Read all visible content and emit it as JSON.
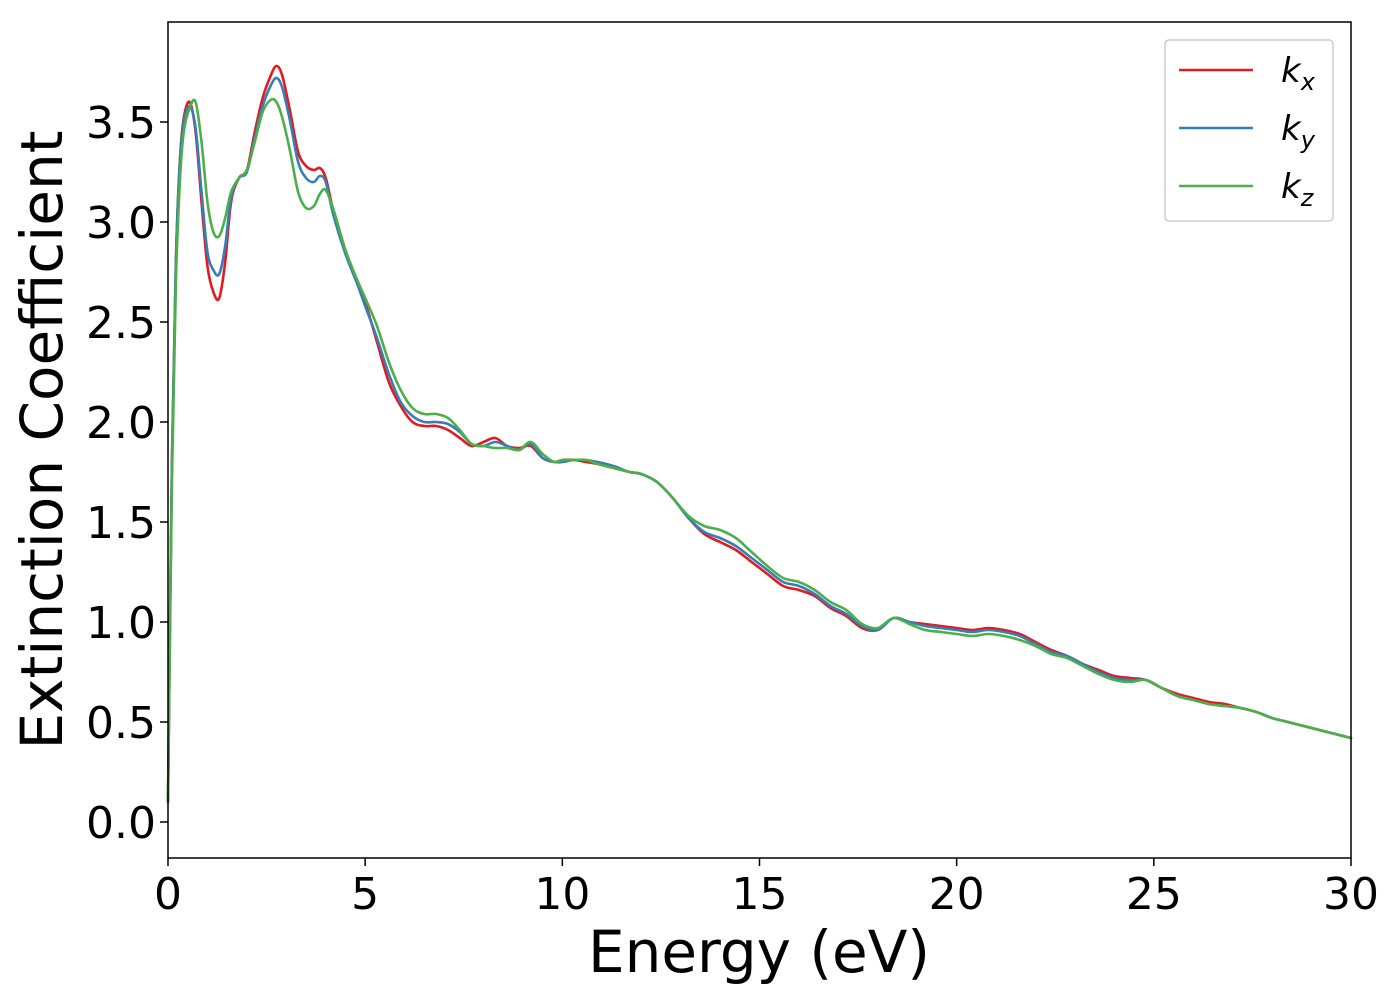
{
  "chart_data": {
    "type": "line",
    "xlabel": "Energy (eV)",
    "ylabel": "Extinction Coefficient",
    "xlim": [
      0,
      30
    ],
    "ylim": [
      -0.18,
      4.0
    ],
    "xticks": [
      "0",
      "5",
      "10",
      "15",
      "20",
      "25",
      "30"
    ],
    "yticks": [
      "0.0",
      "0.5",
      "1.0",
      "1.5",
      "2.0",
      "2.5",
      "3.0",
      "3.5"
    ],
    "grid": false,
    "legend_position": "top-right",
    "series": [
      {
        "name": "k",
        "subscript": "x",
        "color": "#e41a1c",
        "x": [
          0,
          0.1,
          0.2,
          0.3,
          0.4,
          0.55,
          0.7,
          0.85,
          1.0,
          1.15,
          1.3,
          1.45,
          1.6,
          1.8,
          2.0,
          2.2,
          2.4,
          2.6,
          2.75,
          2.9,
          3.1,
          3.3,
          3.5,
          3.7,
          3.85,
          4.0,
          4.2,
          4.5,
          4.8,
          5.0,
          5.3,
          5.6,
          5.9,
          6.2,
          6.5,
          6.8,
          7.1,
          7.4,
          7.7,
          8.0,
          8.3,
          8.6,
          8.9,
          9.2,
          9.5,
          9.8,
          10.0,
          10.3,
          10.6,
          10.9,
          11.3,
          11.7,
          12.0,
          12.4,
          12.8,
          13.2,
          13.6,
          14.0,
          14.4,
          14.8,
          15.2,
          15.6,
          16.0,
          16.4,
          16.8,
          17.2,
          17.6,
          18.0,
          18.4,
          18.8,
          19.2,
          19.6,
          20.0,
          20.4,
          20.8,
          21.2,
          21.6,
          22.0,
          22.4,
          22.8,
          23.2,
          23.6,
          24.0,
          24.4,
          24.8,
          25.2,
          25.6,
          26.0,
          26.4,
          26.8,
          27.2,
          27.6,
          28.0,
          28.4,
          28.8,
          29.2,
          29.6,
          30.0
        ],
        "y": [
          0.1,
          1.8,
          2.8,
          3.3,
          3.52,
          3.6,
          3.45,
          3.1,
          2.78,
          2.65,
          2.62,
          2.8,
          3.1,
          3.22,
          3.26,
          3.45,
          3.62,
          3.73,
          3.78,
          3.73,
          3.55,
          3.35,
          3.28,
          3.26,
          3.27,
          3.22,
          3.05,
          2.85,
          2.7,
          2.6,
          2.4,
          2.2,
          2.08,
          2.0,
          1.98,
          1.98,
          1.96,
          1.92,
          1.88,
          1.9,
          1.92,
          1.88,
          1.87,
          1.88,
          1.82,
          1.8,
          1.81,
          1.81,
          1.8,
          1.79,
          1.77,
          1.75,
          1.74,
          1.7,
          1.62,
          1.52,
          1.44,
          1.4,
          1.36,
          1.3,
          1.24,
          1.18,
          1.16,
          1.13,
          1.07,
          1.03,
          0.97,
          0.96,
          1.02,
          1.0,
          0.99,
          0.98,
          0.97,
          0.96,
          0.97,
          0.96,
          0.94,
          0.9,
          0.86,
          0.83,
          0.79,
          0.76,
          0.73,
          0.72,
          0.71,
          0.67,
          0.64,
          0.62,
          0.6,
          0.59,
          0.57,
          0.55,
          0.52,
          0.5,
          0.48,
          0.46,
          0.44,
          0.42
        ]
      },
      {
        "name": "k",
        "subscript": "y",
        "color": "#377eb8",
        "x": [
          0,
          0.1,
          0.2,
          0.3,
          0.4,
          0.55,
          0.7,
          0.85,
          1.0,
          1.15,
          1.3,
          1.45,
          1.6,
          1.8,
          2.0,
          2.2,
          2.4,
          2.6,
          2.75,
          2.9,
          3.1,
          3.3,
          3.5,
          3.7,
          3.85,
          4.0,
          4.2,
          4.5,
          4.8,
          5.0,
          5.3,
          5.6,
          5.9,
          6.2,
          6.5,
          6.8,
          7.1,
          7.4,
          7.7,
          8.0,
          8.3,
          8.6,
          8.9,
          9.2,
          9.5,
          9.8,
          10.0,
          10.3,
          10.6,
          10.9,
          11.3,
          11.7,
          12.0,
          12.4,
          12.8,
          13.2,
          13.6,
          14.0,
          14.4,
          14.8,
          15.2,
          15.6,
          16.0,
          16.4,
          16.8,
          17.2,
          17.6,
          18.0,
          18.4,
          18.8,
          19.2,
          19.6,
          20.0,
          20.4,
          20.8,
          21.2,
          21.6,
          22.0,
          22.4,
          22.8,
          23.2,
          23.6,
          24.0,
          24.4,
          24.8,
          25.2,
          25.6,
          26.0,
          26.4,
          26.8,
          27.2,
          27.6,
          28.0,
          28.4,
          28.8,
          29.2,
          29.6,
          30.0
        ],
        "y": [
          0.1,
          1.8,
          2.8,
          3.3,
          3.5,
          3.58,
          3.47,
          3.15,
          2.85,
          2.76,
          2.74,
          2.88,
          3.12,
          3.22,
          3.25,
          3.42,
          3.58,
          3.68,
          3.72,
          3.67,
          3.5,
          3.3,
          3.22,
          3.2,
          3.23,
          3.2,
          3.03,
          2.84,
          2.69,
          2.58,
          2.42,
          2.24,
          2.1,
          2.03,
          2.0,
          2.0,
          1.99,
          1.95,
          1.89,
          1.88,
          1.9,
          1.88,
          1.86,
          1.89,
          1.82,
          1.8,
          1.8,
          1.81,
          1.81,
          1.8,
          1.78,
          1.75,
          1.74,
          1.7,
          1.62,
          1.52,
          1.45,
          1.42,
          1.38,
          1.32,
          1.26,
          1.2,
          1.18,
          1.14,
          1.08,
          1.04,
          0.98,
          0.96,
          1.02,
          1.0,
          0.98,
          0.97,
          0.96,
          0.95,
          0.96,
          0.95,
          0.93,
          0.89,
          0.85,
          0.83,
          0.79,
          0.75,
          0.72,
          0.71,
          0.71,
          0.67,
          0.63,
          0.61,
          0.59,
          0.58,
          0.57,
          0.55,
          0.52,
          0.5,
          0.48,
          0.46,
          0.44,
          0.42
        ]
      },
      {
        "name": "k",
        "subscript": "z",
        "color": "#4daf4a",
        "x": [
          0,
          0.1,
          0.2,
          0.3,
          0.4,
          0.55,
          0.7,
          0.85,
          1.0,
          1.15,
          1.3,
          1.45,
          1.6,
          1.8,
          2.0,
          2.2,
          2.4,
          2.6,
          2.75,
          2.9,
          3.1,
          3.3,
          3.5,
          3.7,
          3.85,
          4.0,
          4.2,
          4.5,
          4.8,
          5.0,
          5.3,
          5.6,
          5.9,
          6.2,
          6.5,
          6.8,
          7.1,
          7.4,
          7.7,
          8.0,
          8.3,
          8.6,
          8.9,
          9.2,
          9.5,
          9.8,
          10.0,
          10.3,
          10.6,
          10.9,
          11.3,
          11.7,
          12.0,
          12.4,
          12.8,
          13.2,
          13.6,
          14.0,
          14.4,
          14.8,
          15.2,
          15.6,
          16.0,
          16.4,
          16.8,
          17.2,
          17.6,
          18.0,
          18.4,
          18.8,
          19.2,
          19.6,
          20.0,
          20.4,
          20.8,
          21.2,
          21.6,
          22.0,
          22.4,
          22.8,
          23.2,
          23.6,
          24.0,
          24.4,
          24.8,
          25.2,
          25.6,
          26.0,
          26.4,
          26.8,
          27.2,
          27.6,
          28.0,
          28.4,
          28.8,
          29.2,
          29.6,
          30.0
        ],
        "y": [
          0.1,
          1.7,
          2.7,
          3.2,
          3.45,
          3.57,
          3.6,
          3.4,
          3.1,
          2.95,
          2.93,
          3.02,
          3.15,
          3.22,
          3.26,
          3.4,
          3.55,
          3.61,
          3.6,
          3.52,
          3.35,
          3.15,
          3.07,
          3.08,
          3.14,
          3.16,
          3.06,
          2.86,
          2.71,
          2.62,
          2.48,
          2.3,
          2.16,
          2.07,
          2.04,
          2.04,
          2.02,
          1.96,
          1.89,
          1.88,
          1.87,
          1.87,
          1.86,
          1.9,
          1.84,
          1.8,
          1.81,
          1.81,
          1.81,
          1.79,
          1.77,
          1.75,
          1.74,
          1.7,
          1.62,
          1.53,
          1.48,
          1.46,
          1.42,
          1.35,
          1.28,
          1.22,
          1.2,
          1.16,
          1.1,
          1.06,
          0.99,
          0.97,
          1.02,
          0.99,
          0.96,
          0.95,
          0.94,
          0.93,
          0.94,
          0.93,
          0.91,
          0.88,
          0.84,
          0.82,
          0.78,
          0.74,
          0.71,
          0.7,
          0.71,
          0.67,
          0.63,
          0.61,
          0.59,
          0.58,
          0.57,
          0.55,
          0.52,
          0.5,
          0.48,
          0.46,
          0.44,
          0.42
        ]
      }
    ]
  }
}
